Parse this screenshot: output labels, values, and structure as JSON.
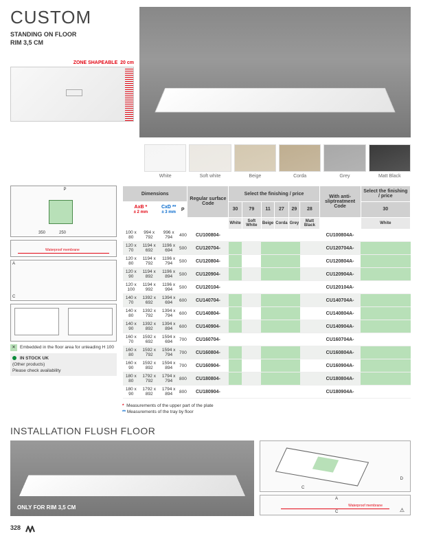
{
  "title": "CUSTOM",
  "subtitle1": "STANDING ON FLOOR",
  "subtitle2": "RIM 3,5 CM",
  "zone_label": "ZONE SHAPEABLE",
  "zone_val": "20 cm",
  "swatches": [
    {
      "label": "White",
      "color": "#f5f5f5"
    },
    {
      "label": "Soft white",
      "color": "#ebe8e2"
    },
    {
      "label": "Beige",
      "color": "#d4c8b0"
    },
    {
      "label": "Corda",
      "color": "#bfae90"
    },
    {
      "label": "Grey",
      "color": "#a8a8a8"
    },
    {
      "label": "Matt Black",
      "color": "#3a3a3a"
    }
  ],
  "headers": {
    "dimensions": "Dimensions",
    "regular": "Regular surface Code",
    "select": "Select the finishing / price",
    "anti": "With anti-sliptreatment Code",
    "select2": "Select the finishing / price",
    "axb": "AxB *",
    "axb_tol": "± 2 mm",
    "cxd": "CxD **",
    "cxd_tol": "± 3 mm",
    "p": "P"
  },
  "finish_codes": [
    "30",
    "79",
    "11",
    "27",
    "29",
    "28"
  ],
  "finish_labels": [
    "White",
    "Soft White",
    "Beige",
    "Corda",
    "Grey",
    "Matt Black"
  ],
  "anti_code": "30",
  "anti_label": "White",
  "rows": [
    {
      "s": 0,
      "d": "100 x 80",
      "ab": "994 x 792",
      "cd": "996 x 794",
      "p": "400",
      "c1": "CU100804-",
      "c2": "CU100804A-",
      "g": [
        0,
        0,
        0,
        0,
        0,
        0
      ],
      "g2": 0
    },
    {
      "s": 1,
      "d": "120 x 70",
      "ab": "1194 x 692",
      "cd": "1196 x 694",
      "p": "500",
      "c1": "CU120704-",
      "c2": "CU120704A-",
      "g": [
        1,
        0,
        1,
        1,
        1,
        0
      ],
      "g2": 1
    },
    {
      "s": 0,
      "d": "120 x 80",
      "ab": "1194 x 792",
      "cd": "1196 x 794",
      "p": "500",
      "c1": "CU120804-",
      "c2": "CU120804A-",
      "g": [
        1,
        0,
        1,
        1,
        1,
        0
      ],
      "g2": 1
    },
    {
      "s": 1,
      "d": "120 x 90",
      "ab": "1194 x 892",
      "cd": "1196 x 894",
      "p": "500",
      "c1": "CU120904-",
      "c2": "CU120904A-",
      "g": [
        1,
        0,
        1,
        1,
        1,
        0
      ],
      "g2": 1
    },
    {
      "s": 0,
      "d": "120 x 100",
      "ab": "1194 x 992",
      "cd": "1196 x 994",
      "p": "500",
      "c1": "CU120104-",
      "c2": "CU120104A-",
      "g": [
        0,
        0,
        0,
        0,
        0,
        0
      ],
      "g2": 0
    },
    {
      "s": 1,
      "d": "140 x 70",
      "ab": "1392 x 692",
      "cd": "1394 x 694",
      "p": "600",
      "c1": "CU140704-",
      "c2": "CU140704A-",
      "g": [
        1,
        0,
        1,
        1,
        1,
        0
      ],
      "g2": 1
    },
    {
      "s": 0,
      "d": "140 x 80",
      "ab": "1392 x 792",
      "cd": "1394 x 794",
      "p": "600",
      "c1": "CU140804-",
      "c2": "CU140804A-",
      "g": [
        1,
        0,
        1,
        1,
        1,
        0
      ],
      "g2": 1
    },
    {
      "s": 1,
      "d": "140 x 90",
      "ab": "1392 x 892",
      "cd": "1394 x 894",
      "p": "600",
      "c1": "CU140904-",
      "c2": "CU140904A-",
      "g": [
        1,
        0,
        1,
        1,
        1,
        0
      ],
      "g2": 1
    },
    {
      "s": 0,
      "d": "160 x 70",
      "ab": "1592 x 692",
      "cd": "1594 x 694",
      "p": "700",
      "c1": "CU160704-",
      "c2": "CU160704A-",
      "g": [
        0,
        0,
        0,
        0,
        0,
        0
      ],
      "g2": 0
    },
    {
      "s": 1,
      "d": "160 x 80",
      "ab": "1592 x 792",
      "cd": "1594 x 794",
      "p": "700",
      "c1": "CU160804-",
      "c2": "CU160804A-",
      "g": [
        1,
        0,
        1,
        1,
        1,
        0
      ],
      "g2": 1
    },
    {
      "s": 0,
      "d": "160 x 90",
      "ab": "1592 x 892",
      "cd": "1594 x 894",
      "p": "700",
      "c1": "CU160904-",
      "c2": "CU160904A-",
      "g": [
        1,
        0,
        1,
        1,
        1,
        0
      ],
      "g2": 1
    },
    {
      "s": 1,
      "d": "180 x 80",
      "ab": "1792 x 792",
      "cd": "1794 x 794",
      "p": "800",
      "c1": "CU180804-",
      "c2": "CU180804A-",
      "g": [
        1,
        0,
        1,
        1,
        1,
        0
      ],
      "g2": 1
    },
    {
      "s": 0,
      "d": "180 x 90",
      "ab": "1792 x 892",
      "cd": "1794 x 894",
      "p": "800",
      "c1": "CU180904-",
      "c2": "CU180904A-",
      "g": [
        0,
        0,
        0,
        0,
        0,
        0
      ],
      "g2": 0
    }
  ],
  "legend": {
    "embedded": "Embedded in the floor area for unleading H 100",
    "stock": "IN STOCK UK",
    "other": "(Other products)\nPlease check availability"
  },
  "notes": {
    "n1": "Measurements of the upper part of the plate",
    "n2": "Measurements of the tray by floor"
  },
  "flush": {
    "title": "INSTALLATION FLUSH FLOOR",
    "label": "ONLY FOR RIM 3,5 CM",
    "wp": "Waterproof membrane"
  },
  "page_num": "328"
}
